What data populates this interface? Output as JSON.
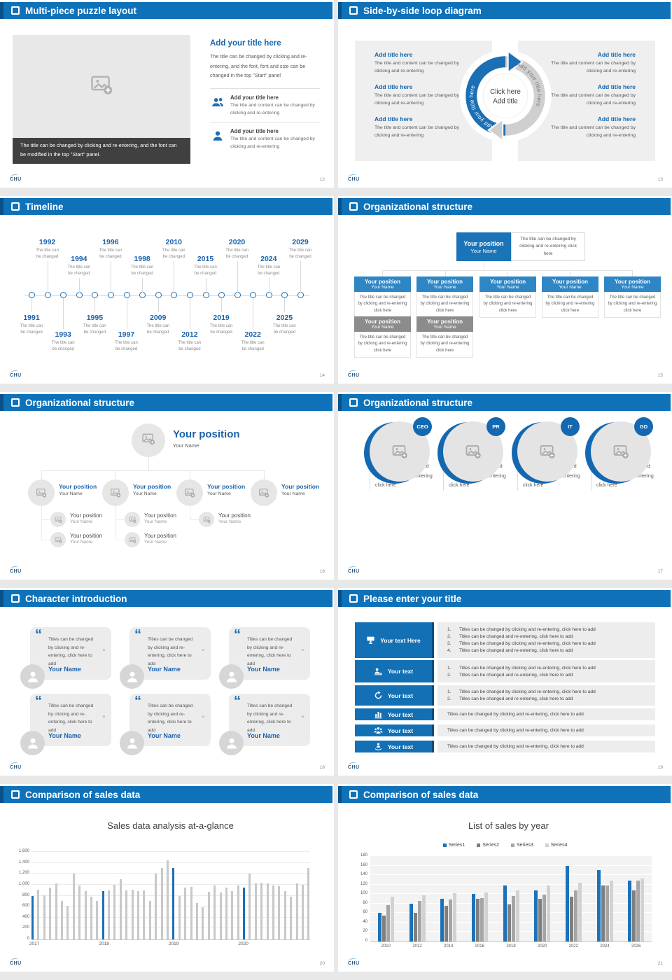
{
  "brand": "CHU",
  "colors": {
    "header_blue": "#0f72b9",
    "header_edge": "#0a5189",
    "accent_blue": "#1565ad",
    "bar_blue": "#1b6fb5",
    "bar_gray": "#c8c8c8",
    "card_header_blue": "#2e86c5",
    "card_header_gray": "#8c8c8c"
  },
  "slides": {
    "puzzle": {
      "title": "Multi-piece puzzle layout",
      "page": "12",
      "caption": "The title can be changed by clicking and re-entering, and the font can be modified in the top \"Start\" panel.",
      "heading": "Add your title here",
      "body": "The title can be changed by clicking and re-entering, and the font, font and size can be changed in the top \"Start\" panel",
      "items": [
        {
          "icon": "people-icon",
          "title": "Add your title here",
          "body": "The title and content can be changed by clicking and re-entering"
        },
        {
          "icon": "person-icon",
          "title": "Add your title here",
          "body": "The title and content can be changed by clicking and re-entering"
        }
      ]
    },
    "loop": {
      "title": "Side-by-side loop diagram",
      "page": "13",
      "center": [
        "Click here",
        "Add title"
      ],
      "arc_left": "Add your title here",
      "arc_right": "Add your title here",
      "item_title": "Add title here",
      "item_body": "The title and content can be changed by clicking and re-entering",
      "left_count": 3,
      "right_count": 3
    },
    "timeline": {
      "title": "Timeline",
      "page": "14",
      "caption": "The title can be changed",
      "items": [
        {
          "year": "1991",
          "side": "below",
          "level": 1
        },
        {
          "year": "1992",
          "side": "above",
          "level": 1
        },
        {
          "year": "1993",
          "side": "below",
          "level": 2
        },
        {
          "year": "1994",
          "side": "above",
          "level": 2
        },
        {
          "year": "1995",
          "side": "below",
          "level": 1
        },
        {
          "year": "1996",
          "side": "above",
          "level": 1
        },
        {
          "year": "1997",
          "side": "below",
          "level": 2
        },
        {
          "year": "1998",
          "side": "above",
          "level": 2
        },
        {
          "year": "2009",
          "side": "below",
          "level": 1
        },
        {
          "year": "2010",
          "side": "above",
          "level": 1
        },
        {
          "year": "2012",
          "side": "below",
          "level": 2
        },
        {
          "year": "2015",
          "side": "above",
          "level": 2
        },
        {
          "year": "2019",
          "side": "below",
          "level": 1
        },
        {
          "year": "2020",
          "side": "above",
          "level": 1
        },
        {
          "year": "2022",
          "side": "below",
          "level": 2
        },
        {
          "year": "2024",
          "side": "above",
          "level": 2
        },
        {
          "year": "2025",
          "side": "below",
          "level": 1
        },
        {
          "year": "2029",
          "side": "above",
          "level": 1
        }
      ]
    },
    "org_boxes": {
      "title": "Organizational structure",
      "page": "15",
      "position": "Your position",
      "name": "Your Name",
      "note": "The title can be changed by clicking and re-entering click here",
      "card_body": "The title can be changed by clicking and re-entering click here",
      "blue_count": 5,
      "gray_count": 2
    },
    "org_tree": {
      "title": "Organizational structure",
      "page": "16",
      "root_position": "Your position",
      "root_name": "Your Name",
      "branch_position": "Your position",
      "branch_name": "Your Name",
      "sub_position": "Your position",
      "sub_name": "Your Name",
      "subs_per_branch": [
        2,
        2,
        1,
        0
      ]
    },
    "org_profiles": {
      "title": "Organizational structure",
      "page": "17",
      "badges": [
        "CEO",
        "PR",
        "IT",
        "GD"
      ],
      "name": "Youe Name",
      "position_label": "Your position",
      "body": "The title can be changed by clicking and re-entering click here"
    },
    "characters": {
      "title": "Character introduction",
      "page": "18",
      "card_count": 6,
      "quote": "Titles can be changed by clicking and re-entering, click here to add",
      "name": "Your Name",
      "open_quote": "“",
      "close_quote": "”"
    },
    "titled_list": {
      "title": "Please enter your title",
      "page": "19",
      "rows": [
        {
          "icon": "presentation-icon",
          "label": "Your text Here",
          "numbered": true,
          "lines": [
            "Titles can be changed by clicking and re-entering, click here to add",
            "Titles can be changed and re-entering, click here to add",
            "Titles can be changed by clicking and re-entering, click here to add",
            "Titles can be changed and re-entering, click here to add"
          ]
        },
        {
          "icon": "person-desk-icon",
          "label": "Your text",
          "numbered": true,
          "lines": [
            "Titles can be changed by clicking and re-entering, click here to add",
            "Titles can be changed and re-entering, click here to add"
          ]
        },
        {
          "icon": "sync-icon",
          "label": "Your text",
          "numbered": true,
          "lines": [
            "Titles can be changed by clicking and re-entering, click here to add",
            "Titles can be changed and re-entering, click here to add"
          ]
        },
        {
          "icon": "bar-chart-icon",
          "label": "Your text",
          "numbered": false,
          "lines": [
            "Titles can be changed by clicking and re-entering, click here to add"
          ]
        },
        {
          "icon": "team-icon",
          "label": "Your text",
          "numbered": false,
          "lines": [
            "Titles can be changed by clicking and re-entering, click here to add"
          ]
        },
        {
          "icon": "speaker-icon",
          "label": "Your text",
          "numbered": false,
          "lines": [
            "Titles can be changed by clicking and re-entering, click here to add"
          ]
        }
      ]
    },
    "chart1": {
      "title": "Comparison of sales data",
      "page": "20"
    },
    "chart2": {
      "title": "Comparison of sales data",
      "page": "21"
    }
  },
  "chart_data": [
    {
      "type": "bar",
      "title": "Sales data analysis at-a-glance",
      "categories": [
        "2017",
        "2018",
        "2019",
        "2020"
      ],
      "group_size": 12,
      "highlight_indices": [
        0,
        12,
        24,
        36
      ],
      "highlight_color": "#1b6fb5",
      "bar_color": "#c8c8c8",
      "values": [
        800,
        905,
        810,
        950,
        1020,
        700,
        610,
        1200,
        990,
        890,
        780,
        700,
        880,
        900,
        1000,
        1100,
        900,
        905,
        880,
        900,
        700,
        1200,
        1300,
        1450,
        1300,
        800,
        950,
        960,
        670,
        590,
        870,
        980,
        860,
        950,
        890,
        980,
        950,
        1200,
        1020,
        1035,
        1020,
        980,
        970,
        890,
        780,
        1020,
        1000,
        1300
      ],
      "ylim": [
        0,
        1600
      ],
      "ytick": 200,
      "yticks": [
        "0",
        "200",
        "400",
        "600",
        "800",
        "1,000",
        "1,200",
        "1,400",
        "1,600"
      ],
      "grid": true,
      "legend": false
    },
    {
      "type": "bar",
      "title": "List of sales by year",
      "categories": [
        "2010",
        "2012",
        "2014",
        "2016",
        "2018",
        "2020",
        "2022",
        "2024",
        "2026"
      ],
      "series": [
        {
          "name": "Series1",
          "color": "#1b72b8",
          "values": [
            60,
            80,
            90,
            100,
            118,
            108,
            160,
            150,
            129
          ]
        },
        {
          "name": "Series2",
          "color": "#7f7f7f",
          "values": [
            55,
            60,
            75,
            90,
            78,
            90,
            95,
            118,
            108
          ]
        },
        {
          "name": "Series3",
          "color": "#a5a5a5",
          "values": [
            77,
            85,
            88,
            91,
            96,
            99,
            108,
            118,
            129
          ]
        },
        {
          "name": "Series4",
          "color": "#d2d2d2",
          "values": [
            95,
            98,
            102,
            104,
            108,
            118,
            124,
            129,
            133
          ]
        }
      ],
      "ylim": [
        0,
        180
      ],
      "ytick": 20,
      "yticks": [
        "0",
        "20",
        "40",
        "60",
        "80",
        "100",
        "120",
        "140",
        "160",
        "180"
      ],
      "grid": true,
      "legend": true,
      "legend_position": "top"
    }
  ]
}
